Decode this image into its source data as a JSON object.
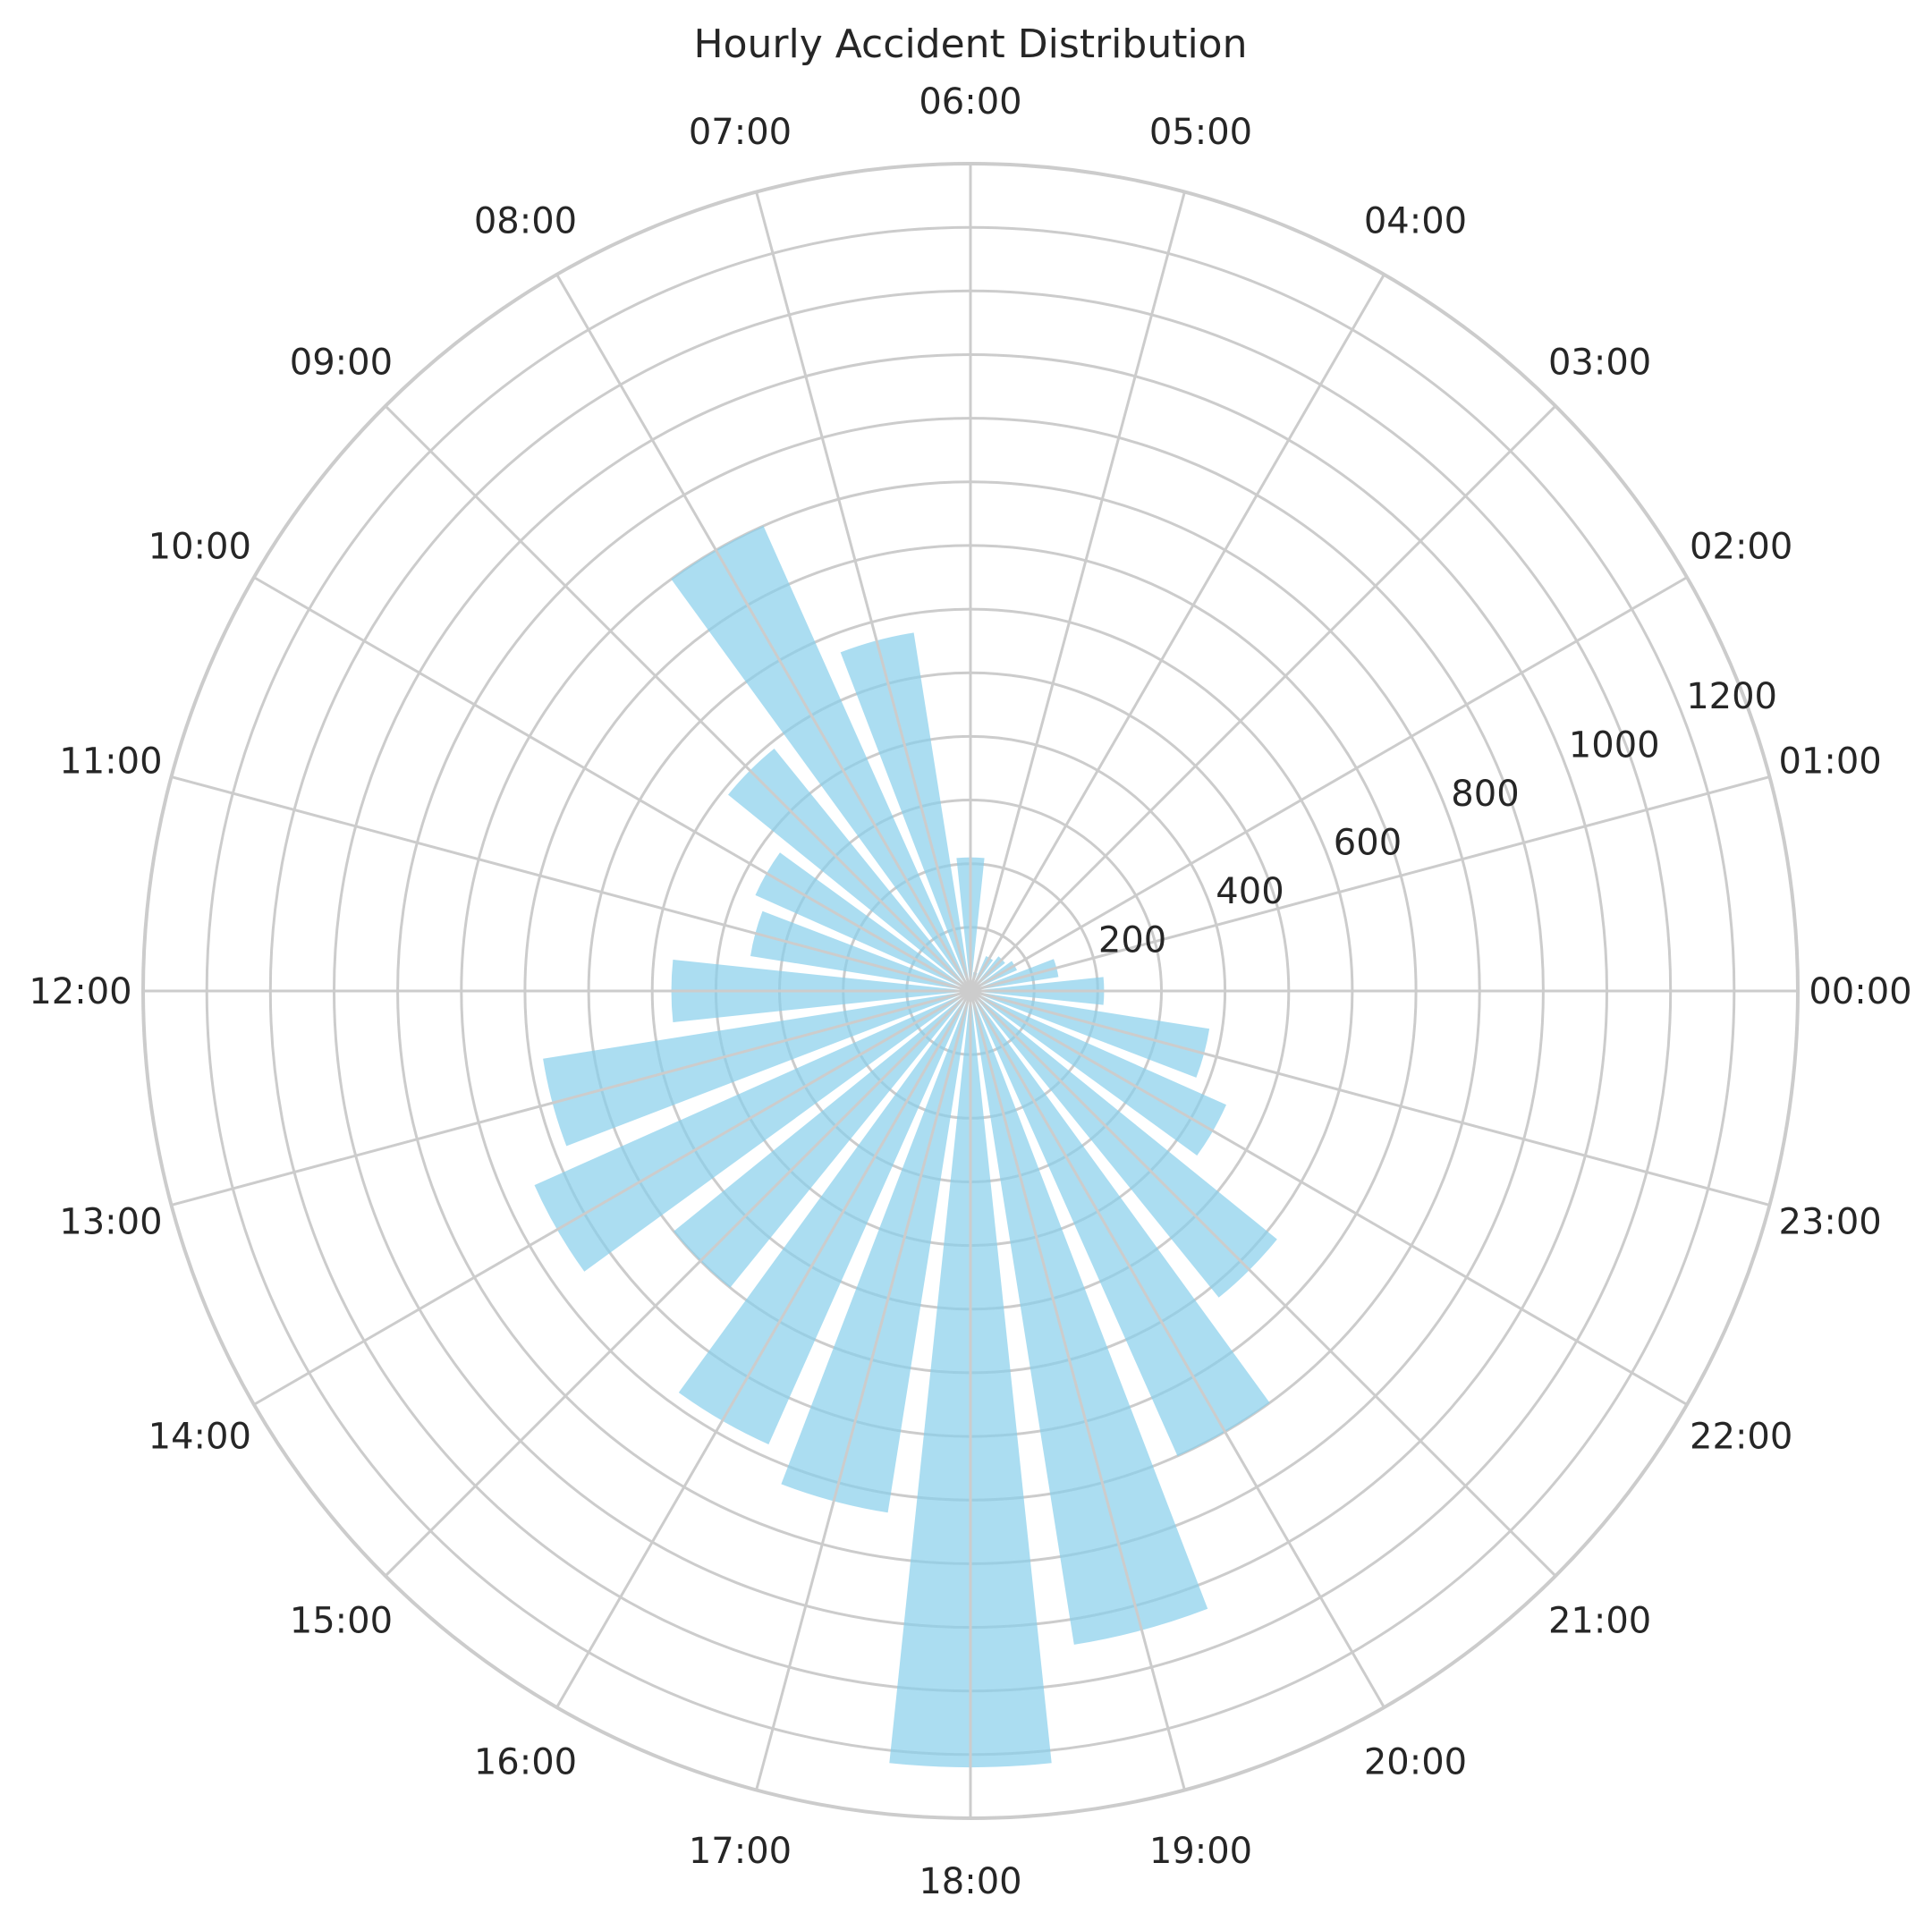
{
  "chart_data": {
    "type": "bar",
    "projection": "polar",
    "title": "Hourly Accident Distribution",
    "categories": [
      "00:00",
      "01:00",
      "02:00",
      "03:00",
      "04:00",
      "05:00",
      "06:00",
      "07:00",
      "08:00",
      "09:00",
      "10:00",
      "11:00",
      "12:00",
      "13:00",
      "14:00",
      "15:00",
      "16:00",
      "17:00",
      "18:00",
      "19:00",
      "20:00",
      "21:00",
      "22:00",
      "23:00"
    ],
    "values": [
      210,
      140,
      80,
      70,
      60,
      30,
      210,
      570,
      800,
      490,
      370,
      350,
      470,
      680,
      750,
      600,
      780,
      830,
      1220,
      1040,
      800,
      620,
      440,
      380
    ],
    "radial_ticks": [
      200,
      400,
      600,
      800,
      1000,
      1200
    ],
    "rlim": [
      0,
      1300
    ],
    "direction": "counterclockwise",
    "zero_location": "right",
    "bar_color": "#87CEEB",
    "grid": true
  }
}
